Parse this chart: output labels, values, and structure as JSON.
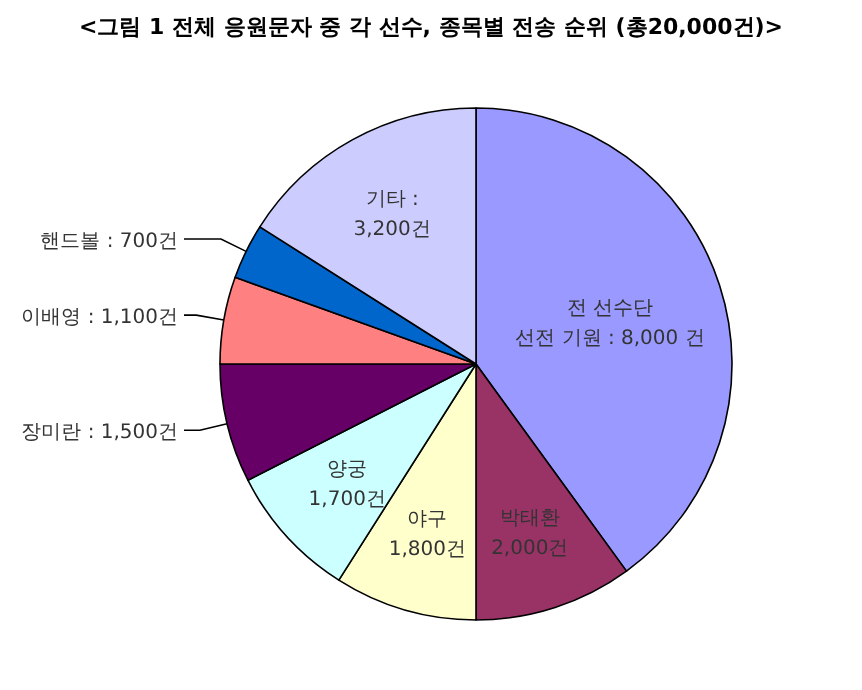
{
  "chart_data": {
    "type": "pie",
    "title": "<그림 1 전체 응원문자 중 각 선수, 종목별 전송 순위 (총20,000건)>",
    "categories": [
      "전 선수단 선전 기원 : 8,000 건",
      "박태환 2,000건",
      "야구 1,800건",
      "양궁 1,700건",
      "장미란 : 1,500건",
      "이배영 : 1,100건",
      "핸드볼 : 700건",
      "기타 : 3,200건"
    ],
    "values": [
      8000,
      2000,
      1800,
      1700,
      1500,
      1100,
      700,
      3200
    ],
    "colors": [
      "#9999ff",
      "#993366",
      "#ffffcc",
      "#ccffff",
      "#660066",
      "#ff8080",
      "#0066cc",
      "#ccccff"
    ]
  }
}
